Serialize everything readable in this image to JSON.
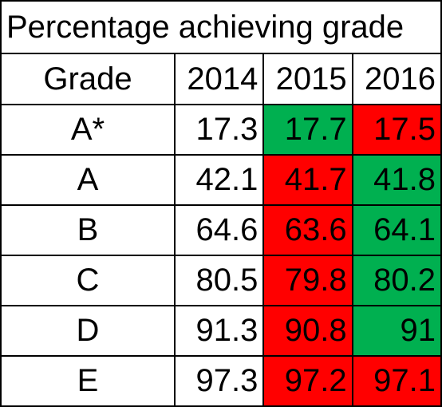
{
  "chart_data": {
    "type": "table",
    "title": "Percentage achieving grade",
    "columns": [
      "Grade",
      "2014",
      "2015",
      "2016"
    ],
    "rows": [
      {
        "grade": "A*",
        "values": [
          "17.3",
          "17.7",
          "17.5"
        ],
        "colors": [
          "none",
          "up",
          "down"
        ]
      },
      {
        "grade": "A",
        "values": [
          "42.1",
          "41.7",
          "41.8"
        ],
        "colors": [
          "none",
          "down",
          "up"
        ]
      },
      {
        "grade": "B",
        "values": [
          "64.6",
          "63.6",
          "64.1"
        ],
        "colors": [
          "none",
          "down",
          "up"
        ]
      },
      {
        "grade": "C",
        "values": [
          "80.5",
          "79.8",
          "80.2"
        ],
        "colors": [
          "none",
          "down",
          "up"
        ]
      },
      {
        "grade": "D",
        "values": [
          "91.3",
          "90.8",
          "91"
        ],
        "colors": [
          "none",
          "down",
          "up"
        ]
      },
      {
        "grade": "E",
        "values": [
          "97.3",
          "97.2",
          "97.1"
        ],
        "colors": [
          "none",
          "down",
          "down"
        ]
      }
    ],
    "palette": {
      "up": "#00b050",
      "down": "#ff0000",
      "none": "#ffffff"
    }
  }
}
